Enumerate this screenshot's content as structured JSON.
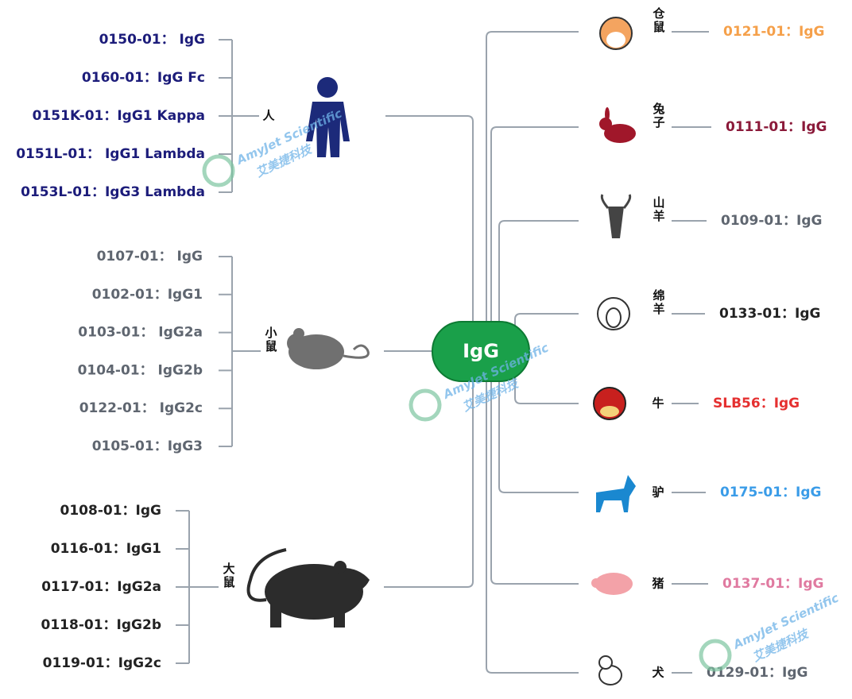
{
  "center": "IgG",
  "left": [
    {
      "species": "人",
      "items": [
        "0150-01： IgG",
        "0160-01：IgG Fc",
        "0151K-01：IgG1 Kappa",
        "0151L-01： IgG1 Lambda",
        "0153L-01：IgG3 Lambda"
      ]
    },
    {
      "species": "小鼠",
      "items": [
        "0107-01： IgG",
        "0102-01：IgG1",
        "0103-01： IgG2a",
        "0104-01： IgG2b",
        "0122-01： IgG2c",
        "0105-01：IgG3"
      ]
    },
    {
      "species": "大鼠",
      "items": [
        "0108-01：IgG",
        "0116-01：IgG1",
        "0117-01：IgG2a",
        "0118-01：IgG2b",
        "0119-01：IgG2c"
      ]
    }
  ],
  "right": [
    {
      "species": "仓鼠",
      "item": "0121-01：IgG"
    },
    {
      "species": "兔子",
      "item": "0111-01：IgG"
    },
    {
      "species": "山羊",
      "item": "0109-01：IgG"
    },
    {
      "species": "绵羊",
      "item": "0133-01：IgG"
    },
    {
      "species": "牛",
      "item": "SLB56：IgG"
    },
    {
      "species": "驴",
      "item": "0175-01：IgG"
    },
    {
      "species": "猪",
      "item": "0137-01：IgG"
    },
    {
      "species": "犬",
      "item": "0129-01：IgG"
    }
  ],
  "watermark": {
    "en": "AmyJet Scientific",
    "zh": "艾美捷科技"
  }
}
